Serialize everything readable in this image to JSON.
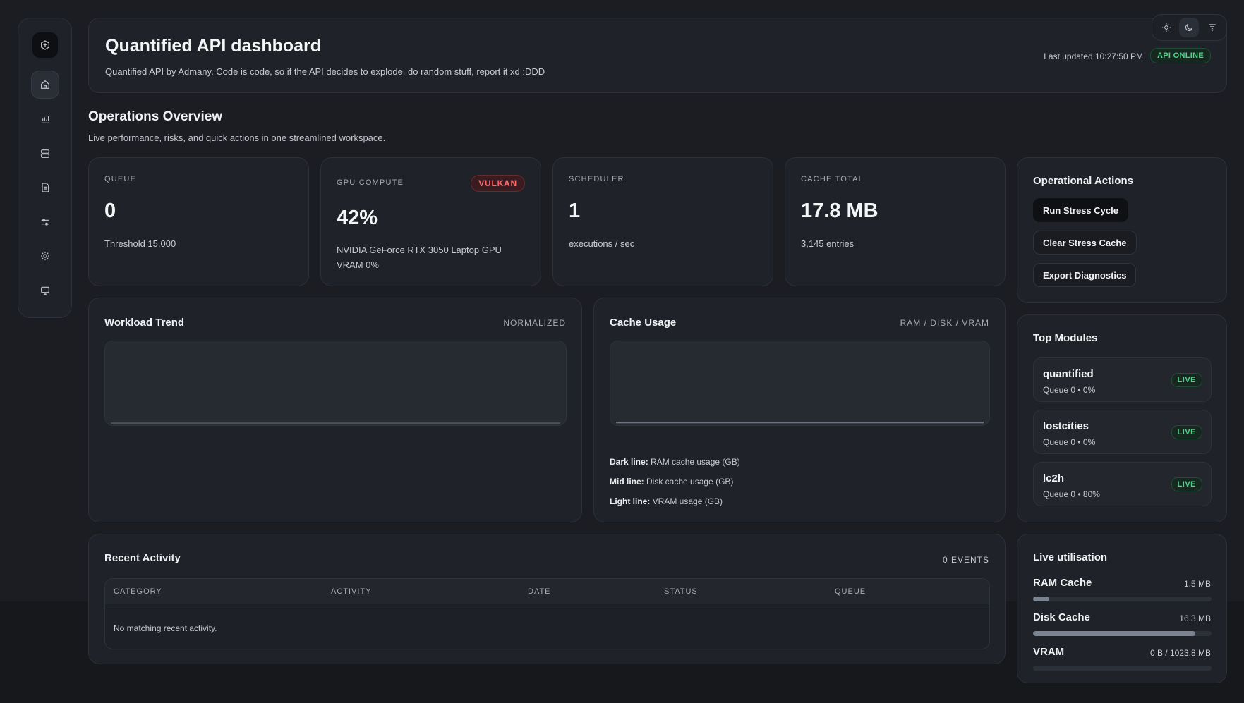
{
  "header": {
    "title": "Quantified API dashboard",
    "subtitle": "Quantified API by Admany. Code is code, so if the API decides to explode, do random stuff, report it xd :DDD",
    "last_updated": "Last updated 10:27:50 PM",
    "status_badge": "API ONLINE"
  },
  "overview": {
    "title": "Operations Overview",
    "subtitle": "Live performance, risks, and quick actions in one streamlined workspace."
  },
  "stats": {
    "queue": {
      "label": "QUEUE",
      "value": "0",
      "note": "Threshold 15,000"
    },
    "gpu": {
      "label": "GPU COMPUTE",
      "badge": "VULKAN",
      "value": "42%",
      "note1": "NVIDIA GeForce RTX 3050 Laptop GPU",
      "note2": "VRAM 0%"
    },
    "scheduler": {
      "label": "SCHEDULER",
      "value": "1",
      "note": "executions / sec"
    },
    "cache": {
      "label": "CACHE TOTAL",
      "value": "17.8 MB",
      "note": "3,145 entries"
    }
  },
  "actions": {
    "title": "Operational Actions",
    "run": "Run Stress Cycle",
    "clear": "Clear Stress Cache",
    "export": "Export Diagnostics"
  },
  "workload": {
    "title": "Workload Trend",
    "tag": "NORMALIZED"
  },
  "cache_usage": {
    "title": "Cache Usage",
    "tag": "RAM / DISK / VRAM",
    "legend": [
      {
        "key": "Dark line:",
        "text": "RAM cache usage (GB)"
      },
      {
        "key": "Mid line:",
        "text": "Disk cache usage (GB)"
      },
      {
        "key": "Light line:",
        "text": "VRAM usage (GB)"
      }
    ]
  },
  "modules": {
    "title": "Top Modules",
    "items": [
      {
        "name": "quantified",
        "meta": "Queue 0 • 0%",
        "status": "LIVE"
      },
      {
        "name": "lostcities",
        "meta": "Queue 0 • 0%",
        "status": "LIVE"
      },
      {
        "name": "lc2h",
        "meta": "Queue 0 • 80%",
        "status": "LIVE"
      }
    ]
  },
  "activity": {
    "title": "Recent Activity",
    "count": "0 EVENTS",
    "columns": [
      "CATEGORY",
      "ACTIVITY",
      "DATE",
      "STATUS",
      "QUEUE"
    ],
    "empty": "No matching recent activity."
  },
  "utilisation": {
    "title": "Live utilisation",
    "items": [
      {
        "label": "RAM Cache",
        "value": "1.5 MB",
        "fill": 0.09
      },
      {
        "label": "Disk Cache",
        "value": "16.3 MB",
        "fill": 0.91
      },
      {
        "label": "VRAM",
        "value": "0 B / 1023.8 MB",
        "fill": 0
      }
    ]
  },
  "colors": {
    "accent_green": "#4cd68a",
    "accent_red": "#ff6b6b",
    "background": "#1b1d22",
    "panel": "#1f2228"
  }
}
